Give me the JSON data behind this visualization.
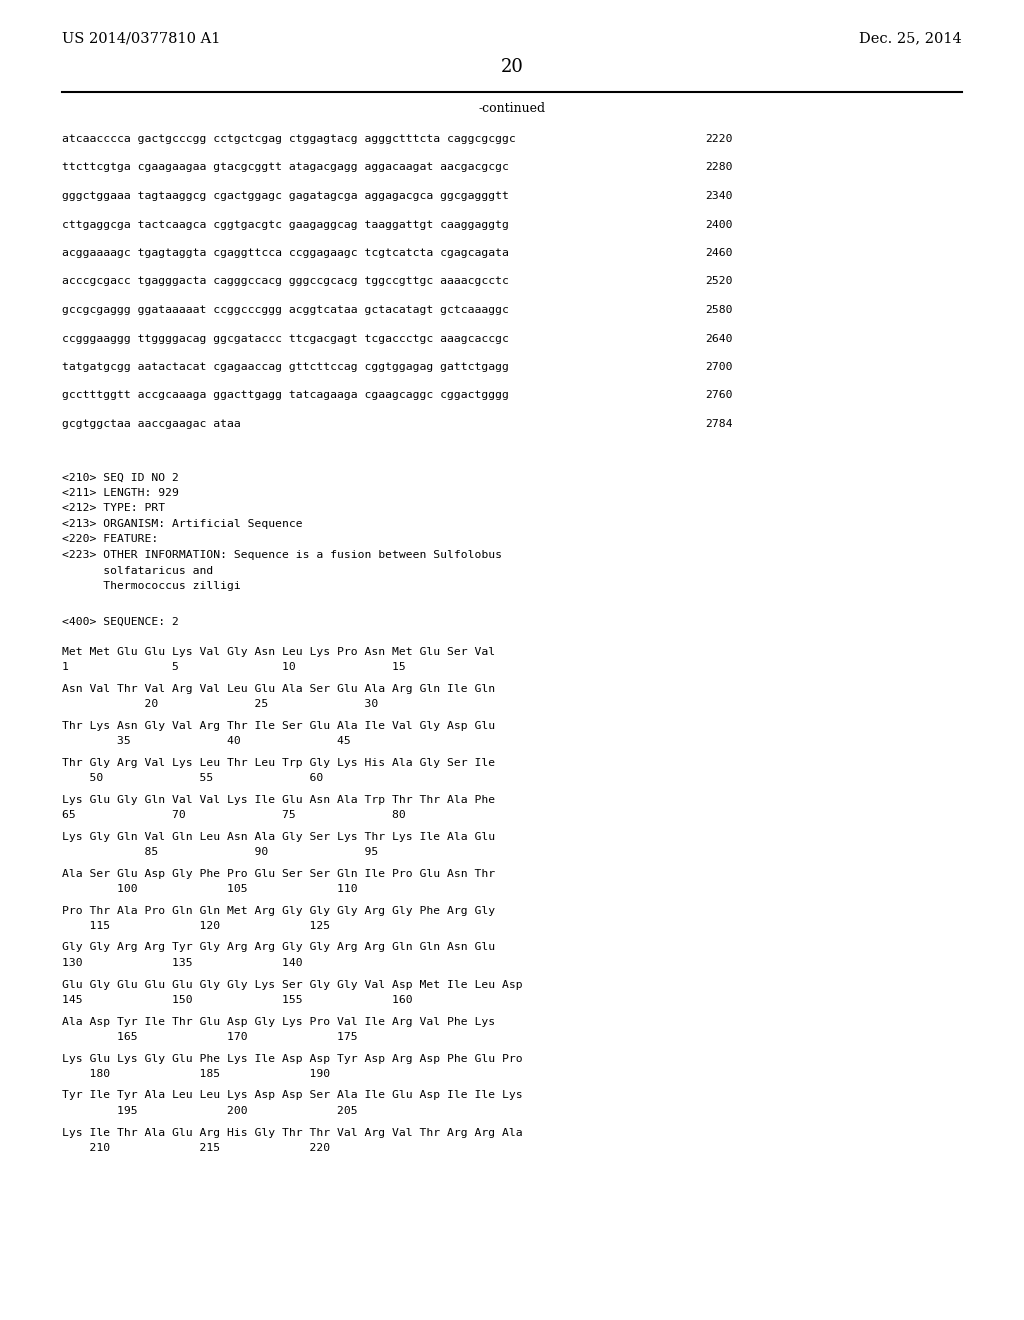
{
  "background_color": "#ffffff",
  "page_number": "20",
  "left_header": "US 2014/0377810 A1",
  "right_header": "Dec. 25, 2014",
  "continued_label": "-continued",
  "sequence_lines": [
    [
      "atcaacccca gactgcccgg cctgctcgag ctggagtacg agggctttcta caggcgcggc",
      "2220"
    ],
    [
      "ttcttcgtga cgaagaagaa gtacgcggtt atagacgagg aggacaagat aacgacgcgc",
      "2280"
    ],
    [
      "gggctggaaa tagtaaggcg cgactggagc gagatagcga aggagacgca ggcgagggtt",
      "2340"
    ],
    [
      "cttgaggcga tactcaagca cggtgacgtc gaagaggcag taaggattgt caaggaggtg",
      "2400"
    ],
    [
      "acggaaaagc tgagtaggta cgaggttcca ccggagaagc tcgtcatcta cgagcagata",
      "2460"
    ],
    [
      "acccgcgacc tgagggacta cagggccacg gggccgcacg tggccgttgc aaaacgcctc",
      "2520"
    ],
    [
      "gccgcgaggg ggataaaaat ccggcccggg acggtcataa gctacatagt gctcaaaggc",
      "2580"
    ],
    [
      "ccgggaaggg ttggggacag ggcgataccc ttcgacgagt tcgaccctgc aaagcaccgc",
      "2640"
    ],
    [
      "tatgatgcgg aatactacat cgagaaccag gttcttccag cggtggagag gattctgagg",
      "2700"
    ],
    [
      "gcctttggtt accgcaaaga ggacttgagg tatcagaaga cgaagcaggc cggactgggg",
      "2760"
    ],
    [
      "gcgtggctaa aaccgaagac ataa",
      "2784"
    ]
  ],
  "metadata_lines": [
    "<210> SEQ ID NO 2",
    "<211> LENGTH: 929",
    "<212> TYPE: PRT",
    "<213> ORGANISM: Artificial Sequence",
    "<220> FEATURE:",
    "<223> OTHER INFORMATION: Sequence is a fusion between Sulfolobus",
    "      solfataricus and",
    "      Thermococcus zilligi"
  ],
  "sequence_label": "<400> SEQUENCE: 2",
  "amino_acid_blocks": [
    {
      "residues": "Met Met Glu Glu Lys Val Gly Asn Leu Lys Pro Asn Met Glu Ser Val",
      "numbers": "1               5               10              15"
    },
    {
      "residues": "Asn Val Thr Val Arg Val Leu Glu Ala Ser Glu Ala Arg Gln Ile Gln",
      "numbers": "            20              25              30"
    },
    {
      "residues": "Thr Lys Asn Gly Val Arg Thr Ile Ser Glu Ala Ile Val Gly Asp Glu",
      "numbers": "        35              40              45"
    },
    {
      "residues": "Thr Gly Arg Val Lys Leu Thr Leu Trp Gly Lys His Ala Gly Ser Ile",
      "numbers": "    50              55              60"
    },
    {
      "residues": "Lys Glu Gly Gln Val Val Lys Ile Glu Asn Ala Trp Thr Thr Ala Phe",
      "numbers": "65              70              75              80"
    },
    {
      "residues": "Lys Gly Gln Val Gln Leu Asn Ala Gly Ser Lys Thr Lys Ile Ala Glu",
      "numbers": "            85              90              95"
    },
    {
      "residues": "Ala Ser Glu Asp Gly Phe Pro Glu Ser Ser Gln Ile Pro Glu Asn Thr",
      "numbers": "        100             105             110"
    },
    {
      "residues": "Pro Thr Ala Pro Gln Gln Met Arg Gly Gly Gly Arg Gly Phe Arg Gly",
      "numbers": "    115             120             125"
    },
    {
      "residues": "Gly Gly Arg Arg Tyr Gly Arg Arg Gly Gly Arg Arg Gln Gln Asn Glu",
      "numbers": "130             135             140"
    },
    {
      "residues": "Glu Gly Glu Glu Glu Gly Gly Lys Ser Gly Gly Val Asp Met Ile Leu Asp",
      "numbers": "145             150             155             160"
    },
    {
      "residues": "Ala Asp Tyr Ile Thr Glu Asp Gly Lys Pro Val Ile Arg Val Phe Lys",
      "numbers": "        165             170             175"
    },
    {
      "residues": "Lys Glu Lys Gly Glu Phe Lys Ile Asp Asp Tyr Asp Arg Asp Phe Glu Pro",
      "numbers": "    180             185             190"
    },
    {
      "residues": "Tyr Ile Tyr Ala Leu Leu Lys Asp Asp Ser Ala Ile Glu Asp Ile Ile Lys",
      "numbers": "        195             200             205"
    },
    {
      "residues": "Lys Ile Thr Ala Glu Arg His Gly Thr Thr Val Arg Val Thr Arg Arg Ala",
      "numbers": "    210             215             220"
    }
  ]
}
